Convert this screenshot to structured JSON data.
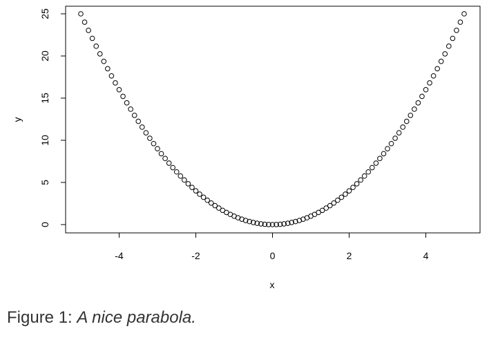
{
  "caption": {
    "label": "Figure 1:",
    "text": "A nice parabola."
  },
  "chart_data": {
    "type": "scatter",
    "title": "",
    "xlabel": "x",
    "ylabel": "y",
    "xlim": [
      -5,
      5
    ],
    "ylim": [
      0,
      25
    ],
    "x_ticks": [
      -4,
      -2,
      0,
      2,
      4
    ],
    "y_ticks": [
      0,
      5,
      10,
      15,
      20,
      25
    ],
    "grid": false,
    "point_style": "open-circle",
    "point_color": "#000000",
    "series": [
      {
        "x": [
          -5.0,
          -4.9,
          -4.8,
          -4.7,
          -4.6,
          -4.5,
          -4.4,
          -4.3,
          -4.2,
          -4.1,
          -4.0,
          -3.9,
          -3.8,
          -3.7,
          -3.6,
          -3.5,
          -3.4,
          -3.3,
          -3.2,
          -3.1,
          -3.0,
          -2.9,
          -2.8,
          -2.7,
          -2.6,
          -2.5,
          -2.4,
          -2.3,
          -2.2,
          -2.1,
          -2.0,
          -1.9,
          -1.8,
          -1.7,
          -1.6,
          -1.5,
          -1.4,
          -1.3,
          -1.2,
          -1.1,
          -1.0,
          -0.9,
          -0.8,
          -0.7,
          -0.6,
          -0.5,
          -0.4,
          -0.3,
          -0.2,
          -0.1,
          0.0,
          0.1,
          0.2,
          0.3,
          0.4,
          0.5,
          0.6,
          0.7,
          0.8,
          0.9,
          1.0,
          1.1,
          1.2,
          1.3,
          1.4,
          1.5,
          1.6,
          1.7,
          1.8,
          1.9,
          2.0,
          2.1,
          2.2,
          2.3,
          2.4,
          2.5,
          2.6,
          2.7,
          2.8,
          2.9,
          3.0,
          3.1,
          3.2,
          3.3,
          3.4,
          3.5,
          3.6,
          3.7,
          3.8,
          3.9,
          4.0,
          4.1,
          4.2,
          4.3,
          4.4,
          4.5,
          4.6,
          4.7,
          4.8,
          4.9,
          5.0
        ],
        "y": [
          25.0,
          24.01,
          23.04,
          22.09,
          21.16,
          20.25,
          19.36,
          18.49,
          17.64,
          16.81,
          16.0,
          15.21,
          14.44,
          13.69,
          12.96,
          12.25,
          11.56,
          10.89,
          10.24,
          9.61,
          9.0,
          8.41,
          7.84,
          7.29,
          6.76,
          6.25,
          5.76,
          5.29,
          4.84,
          4.41,
          4.0,
          3.61,
          3.24,
          2.89,
          2.56,
          2.25,
          1.96,
          1.69,
          1.44,
          1.21,
          1.0,
          0.81,
          0.64,
          0.49,
          0.36,
          0.25,
          0.16,
          0.09,
          0.04,
          0.01,
          0.0,
          0.01,
          0.04,
          0.09,
          0.16,
          0.25,
          0.36,
          0.49,
          0.64,
          0.81,
          1.0,
          1.21,
          1.44,
          1.69,
          1.96,
          2.25,
          2.56,
          2.89,
          3.24,
          3.61,
          4.0,
          4.41,
          4.84,
          5.29,
          5.76,
          6.25,
          6.76,
          7.29,
          7.84,
          8.41,
          9.0,
          9.61,
          10.24,
          10.89,
          11.56,
          12.25,
          12.96,
          13.69,
          14.44,
          15.21,
          16.0,
          16.81,
          17.64,
          18.49,
          19.36,
          20.25,
          21.16,
          22.09,
          23.04,
          24.01,
          25.0
        ]
      }
    ]
  }
}
